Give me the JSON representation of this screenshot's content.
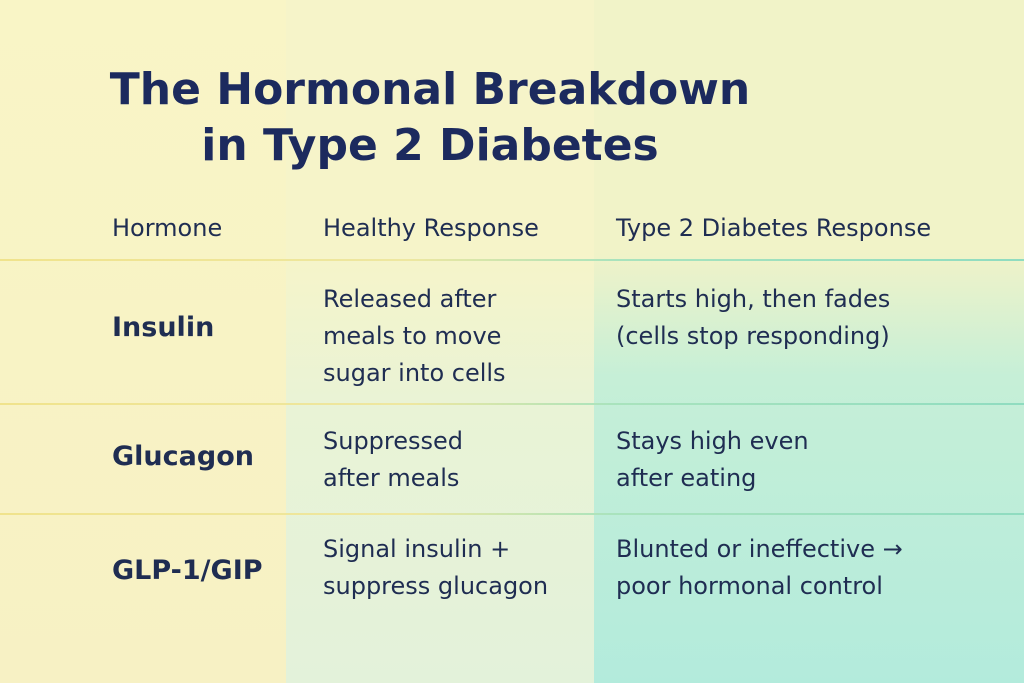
{
  "title": {
    "line1": "The Hormonal Breakdown",
    "line2": "in Type 2 Diabetes"
  },
  "table": {
    "headers": [
      "Hormone",
      "Healthy Response",
      "Type 2 Diabetes Response"
    ],
    "rows": [
      {
        "hormone": "Insulin",
        "healthy": "Released after\nmeals to move\nsugar into cells",
        "t2d": "Starts high, then fades\n(cells stop responding)"
      },
      {
        "hormone": "Glucagon",
        "healthy": "Suppressed\nafter meals",
        "t2d": "Stays high even\nafter eating"
      },
      {
        "hormone": "GLP-1/GIP",
        "healthy": "Signal insulin +\nsuppress glucagon",
        "t2d": "Blunted or ineffective →\npoor hormonal control"
      }
    ]
  },
  "colors": {
    "text": "#1f2d52",
    "title": "#1c2a5e",
    "background_left": "#f9f5c6",
    "background_right": "#b3ebdc"
  }
}
